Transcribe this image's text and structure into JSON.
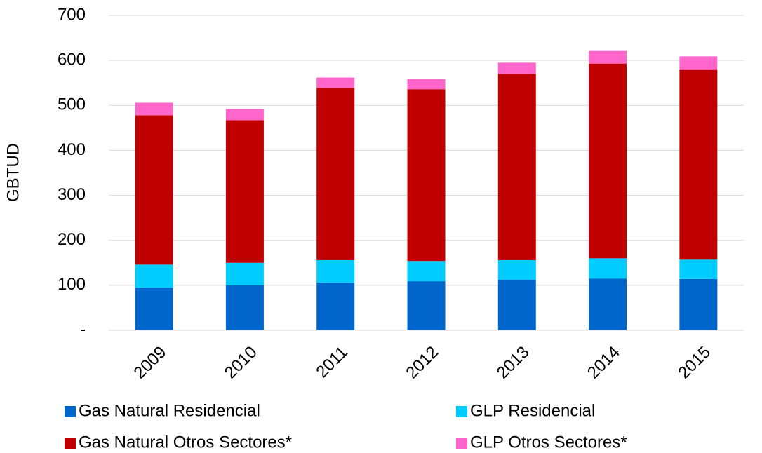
{
  "chart_data": {
    "type": "stacked_bar",
    "y_label": "GBTUD",
    "categories": [
      "2009",
      "2010",
      "2011",
      "2012",
      "2013",
      "2014",
      "2015"
    ],
    "series": [
      {
        "name": "Gas Natural Residencial",
        "color": "#0066cc",
        "values": [
          95,
          100,
          106,
          109,
          112,
          115,
          114
        ]
      },
      {
        "name": "GLP Residencial",
        "color": "#00ccff",
        "values": [
          51,
          50,
          50,
          45,
          44,
          45,
          43
        ]
      },
      {
        "name": "Gas Natural Otros Sectores*",
        "color": "#c00000",
        "values": [
          332,
          317,
          383,
          382,
          414,
          433,
          422
        ]
      },
      {
        "name": "GLP Otros Sectores*",
        "color": "#ff66cc",
        "values": [
          28,
          25,
          23,
          23,
          25,
          28,
          30
        ]
      }
    ],
    "ylim": [
      0,
      700
    ],
    "yticks": [
      {
        "value": 0,
        "label": "-"
      },
      100,
      200,
      300,
      400,
      500,
      600,
      700
    ],
    "grid": true,
    "legend": "bottom"
  }
}
